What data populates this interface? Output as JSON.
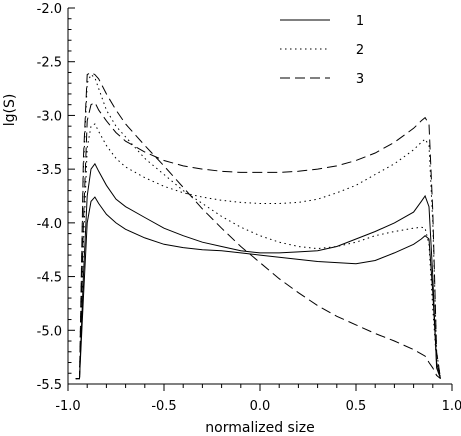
{
  "chart_data": {
    "type": "line",
    "xlabel": "normalized size",
    "ylabel": "lg(S)",
    "xlim": [
      -1.0,
      1.0
    ],
    "ylim": [
      -5.5,
      -2.0
    ],
    "grid": false,
    "legend": "top-right",
    "x_ticks": [
      "-1.0",
      "-0.5",
      "0.0",
      "0.5",
      "1.0"
    ],
    "x_tick_values": [
      -1.0,
      -0.5,
      0.0,
      0.5,
      1.0
    ],
    "y_ticks": [
      "-2.0",
      "-2.5",
      "-3.0",
      "-3.5",
      "-4.0",
      "-4.5",
      "-5.0",
      "-5.5"
    ],
    "y_tick_values": [
      -2.0,
      -2.5,
      -3.0,
      -3.5,
      -4.0,
      -4.5,
      -5.0,
      -5.5
    ],
    "series": [
      {
        "name": "1",
        "style": "solid",
        "lines": [
          {
            "x": [
              -0.96,
              -0.94,
              -0.92,
              -0.9,
              -0.88,
              -0.86,
              -0.84,
              -0.8,
              -0.75,
              -0.7,
              -0.6,
              -0.5,
              -0.4,
              -0.3,
              -0.2,
              -0.1,
              0.0,
              0.1,
              0.2,
              0.3,
              0.4,
              0.5,
              0.6,
              0.7,
              0.8,
              0.84,
              0.86,
              0.88,
              0.9,
              0.92,
              0.94
            ],
            "y": [
              -5.45,
              -5.45,
              -4.5,
              -3.75,
              -3.5,
              -3.45,
              -3.52,
              -3.65,
              -3.78,
              -3.85,
              -3.95,
              -4.05,
              -4.12,
              -4.18,
              -4.22,
              -4.26,
              -4.28,
              -4.28,
              -4.27,
              -4.26,
              -4.22,
              -4.15,
              -4.08,
              -4.0,
              -3.9,
              -3.8,
              -3.75,
              -3.85,
              -4.5,
              -5.35,
              -5.45
            ]
          },
          {
            "x": [
              -0.96,
              -0.94,
              -0.92,
              -0.9,
              -0.88,
              -0.86,
              -0.84,
              -0.8,
              -0.75,
              -0.7,
              -0.6,
              -0.5,
              -0.4,
              -0.3,
              -0.2,
              -0.1,
              0.0,
              0.1,
              0.2,
              0.3,
              0.4,
              0.5,
              0.6,
              0.7,
              0.8,
              0.84,
              0.86,
              0.88,
              0.9,
              0.92,
              0.94
            ],
            "y": [
              -5.45,
              -5.45,
              -4.7,
              -4.0,
              -3.8,
              -3.76,
              -3.82,
              -3.92,
              -4.0,
              -4.06,
              -4.14,
              -4.2,
              -4.23,
              -4.25,
              -4.26,
              -4.28,
              -4.3,
              -4.32,
              -4.34,
              -4.36,
              -4.37,
              -4.38,
              -4.35,
              -4.28,
              -4.2,
              -4.15,
              -4.12,
              -4.15,
              -4.65,
              -5.3,
              -5.45
            ]
          }
        ]
      },
      {
        "name": "2",
        "style": "dotted",
        "lines": [
          {
            "x": [
              -0.96,
              -0.94,
              -0.92,
              -0.9,
              -0.88,
              -0.86,
              -0.84,
              -0.8,
              -0.75,
              -0.7,
              -0.6,
              -0.5,
              -0.4,
              -0.3,
              -0.2,
              -0.1,
              0.0,
              0.1,
              0.2,
              0.3,
              0.4,
              0.5,
              0.6,
              0.7,
              0.8,
              0.84,
              0.86,
              0.88,
              0.9,
              0.92,
              0.94
            ],
            "y": [
              -5.45,
              -5.45,
              -4.2,
              -3.3,
              -3.1,
              -3.08,
              -3.15,
              -3.28,
              -3.4,
              -3.48,
              -3.58,
              -3.66,
              -3.72,
              -3.76,
              -3.79,
              -3.81,
              -3.82,
              -3.82,
              -3.81,
              -3.78,
              -3.72,
              -3.65,
              -3.55,
              -3.45,
              -3.32,
              -3.25,
              -3.22,
              -3.28,
              -4.0,
              -5.2,
              -5.45
            ]
          },
          {
            "x": [
              -0.96,
              -0.94,
              -0.92,
              -0.9,
              -0.88,
              -0.86,
              -0.84,
              -0.8,
              -0.75,
              -0.7,
              -0.6,
              -0.5,
              -0.4,
              -0.3,
              -0.2,
              -0.1,
              0.0,
              0.1,
              0.2,
              0.3,
              0.4,
              0.5,
              0.6,
              0.7,
              0.8,
              0.84,
              0.86,
              0.88,
              0.9,
              0.92,
              0.94
            ],
            "y": [
              -5.45,
              -5.45,
              -3.5,
              -2.7,
              -2.62,
              -2.65,
              -2.75,
              -2.95,
              -3.1,
              -3.2,
              -3.4,
              -3.55,
              -3.7,
              -3.82,
              -3.94,
              -4.04,
              -4.12,
              -4.18,
              -4.22,
              -4.24,
              -4.22,
              -4.18,
              -4.12,
              -4.08,
              -4.05,
              -4.04,
              -4.05,
              -4.2,
              -4.8,
              -5.3,
              -5.45
            ]
          }
        ]
      },
      {
        "name": "3",
        "style": "dashed",
        "lines": [
          {
            "x": [
              -0.96,
              -0.94,
              -0.92,
              -0.9,
              -0.88,
              -0.86,
              -0.84,
              -0.8,
              -0.75,
              -0.7,
              -0.6,
              -0.5,
              -0.4,
              -0.3,
              -0.2,
              -0.1,
              0.0,
              0.1,
              0.2,
              0.3,
              0.4,
              0.5,
              0.6,
              0.7,
              0.8,
              0.84,
              0.86,
              0.88,
              0.9,
              0.92,
              0.94
            ],
            "y": [
              -5.45,
              -5.45,
              -4.0,
              -3.05,
              -2.9,
              -2.88,
              -2.95,
              -3.05,
              -3.16,
              -3.24,
              -3.34,
              -3.42,
              -3.47,
              -3.5,
              -3.52,
              -3.53,
              -3.53,
              -3.53,
              -3.52,
              -3.5,
              -3.47,
              -3.42,
              -3.35,
              -3.25,
              -3.12,
              -3.05,
              -3.02,
              -3.08,
              -3.9,
              -5.2,
              -5.45
            ]
          },
          {
            "x": [
              -0.96,
              -0.94,
              -0.92,
              -0.9,
              -0.88,
              -0.86,
              -0.84,
              -0.8,
              -0.75,
              -0.7,
              -0.6,
              -0.5,
              -0.4,
              -0.3,
              -0.2,
              -0.1,
              0.0,
              0.1,
              0.2,
              0.3,
              0.4,
              0.5,
              0.6,
              0.7,
              0.8,
              0.84,
              0.86,
              0.88,
              0.9,
              0.92,
              0.94
            ],
            "y": [
              -5.45,
              -5.45,
              -3.4,
              -2.62,
              -2.6,
              -2.62,
              -2.66,
              -2.8,
              -2.95,
              -3.08,
              -3.28,
              -3.47,
              -3.67,
              -3.87,
              -4.05,
              -4.22,
              -4.37,
              -4.52,
              -4.65,
              -4.77,
              -4.87,
              -4.95,
              -5.03,
              -5.1,
              -5.18,
              -5.22,
              -5.24,
              -5.3,
              -5.35,
              -5.42,
              -5.45
            ]
          }
        ]
      }
    ]
  }
}
